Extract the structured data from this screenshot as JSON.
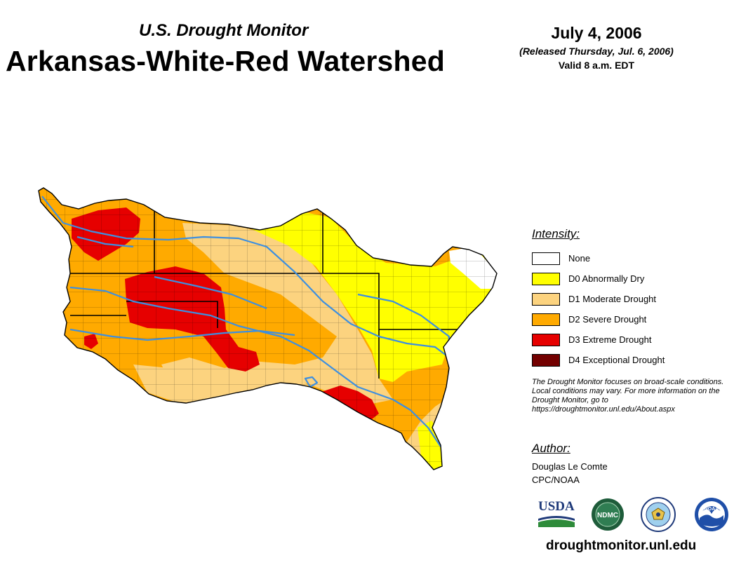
{
  "header": {
    "subtitle": "U.S. Drought Monitor",
    "title": "Arkansas-White-Red Watershed",
    "date": "July 4, 2006",
    "released": "(Released Thursday, Jul. 6, 2006)",
    "valid": "Valid 8 a.m. EDT"
  },
  "legend": {
    "heading": "Intensity:",
    "items": [
      {
        "label": "None",
        "color": "#ffffff"
      },
      {
        "label": "D0 Abnormally Dry",
        "color": "#ffff00"
      },
      {
        "label": "D1 Moderate Drought",
        "color": "#fcd37f"
      },
      {
        "label": "D2 Severe Drought",
        "color": "#ffaa00"
      },
      {
        "label": "D3 Extreme Drought",
        "color": "#e60000"
      },
      {
        "label": "D4 Exceptional Drought",
        "color": "#730000"
      }
    ]
  },
  "note": "The Drought Monitor focuses on broad-scale conditions. Local conditions may vary. For more information on the Drought Monitor, go to https://droughtmonitor.unl.edu/About.aspx",
  "author": {
    "heading": "Author:",
    "name": "Douglas Le Comte",
    "org": "CPC/NOAA"
  },
  "logos": {
    "usda": "USDA",
    "ndmc": "NDMC",
    "noaa": "NOAA"
  },
  "footer": {
    "url": "droughtmonitor.unl.edu"
  },
  "map": {
    "region": "Arkansas-White-Red Watershed",
    "river_color": "#3d8fe0",
    "border_color": "#000000"
  }
}
